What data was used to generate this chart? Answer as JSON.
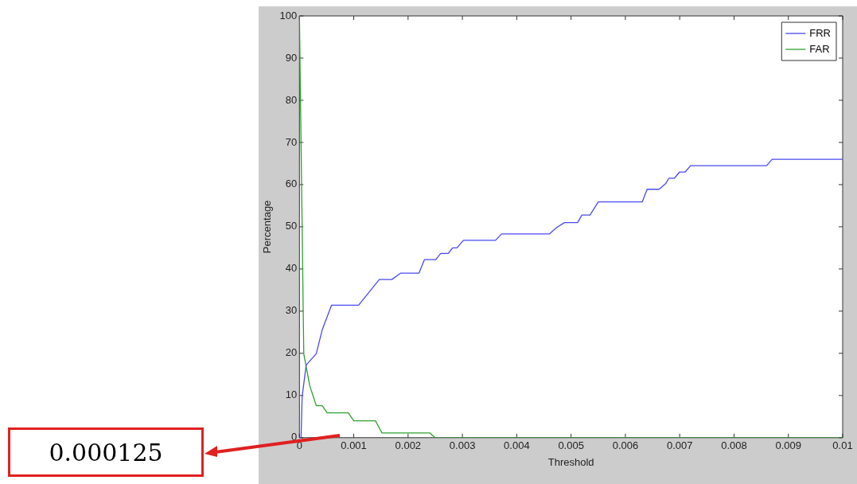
{
  "chart_data": {
    "type": "line",
    "xlabel": "Threshold",
    "ylabel": "Percentage",
    "xlim": [
      0,
      0.01
    ],
    "ylim": [
      0,
      100
    ],
    "xticks": [
      0,
      0.001,
      0.002,
      0.003,
      0.004,
      0.005,
      0.006,
      0.007,
      0.008,
      0.009,
      0.01
    ],
    "yticks": [
      0,
      10,
      20,
      30,
      40,
      50,
      60,
      70,
      80,
      90,
      100
    ],
    "grid": false,
    "legend": "top right",
    "marker": "none",
    "line_style": "solid",
    "annotations": [
      "0.000125"
    ],
    "series": [
      {
        "name": "FRR",
        "color": "#4a4af0",
        "x": [
          0,
          3e-05,
          5e-05,
          0.000124,
          0.00031,
          0.00042,
          0.00059,
          0.00109,
          0.00147,
          0.0017,
          0.00186,
          0.0022,
          0.0023,
          0.00251,
          0.0026,
          0.00274,
          0.00282,
          0.0029,
          0.00302,
          0.00361,
          0.00372,
          0.0046,
          0.00473,
          0.00488,
          0.00512,
          0.0052,
          0.00535,
          0.0055,
          0.00631,
          0.0064,
          0.00662,
          0.00674,
          0.0068,
          0.0069,
          0.007,
          0.0071,
          0.0072,
          0.0086,
          0.0087,
          0.01
        ],
        "values": [
          0,
          0,
          9.7,
          17.2,
          19.9,
          25.6,
          31.4,
          31.4,
          37.5,
          37.5,
          39,
          39,
          42.2,
          42.2,
          43.7,
          43.7,
          45,
          45,
          46.8,
          46.8,
          48.3,
          48.3,
          49.8,
          51,
          51,
          52.8,
          52.8,
          55.9,
          55.9,
          58.9,
          58.9,
          60.2,
          61.5,
          61.5,
          63,
          63,
          64.5,
          64.5,
          66,
          66
        ]
      },
      {
        "name": "FAR",
        "color": "#2ea02e",
        "x": [
          0,
          8e-05,
          0.00019,
          0.00031,
          0.00042,
          0.00051,
          0.0009,
          0.001,
          0.0014,
          0.00152,
          0.0024,
          0.0025,
          0.01
        ],
        "values": [
          100,
          19.9,
          12.3,
          7.6,
          7.6,
          5.9,
          5.9,
          4,
          4,
          1.1,
          1.1,
          0,
          0
        ]
      }
    ]
  }
}
